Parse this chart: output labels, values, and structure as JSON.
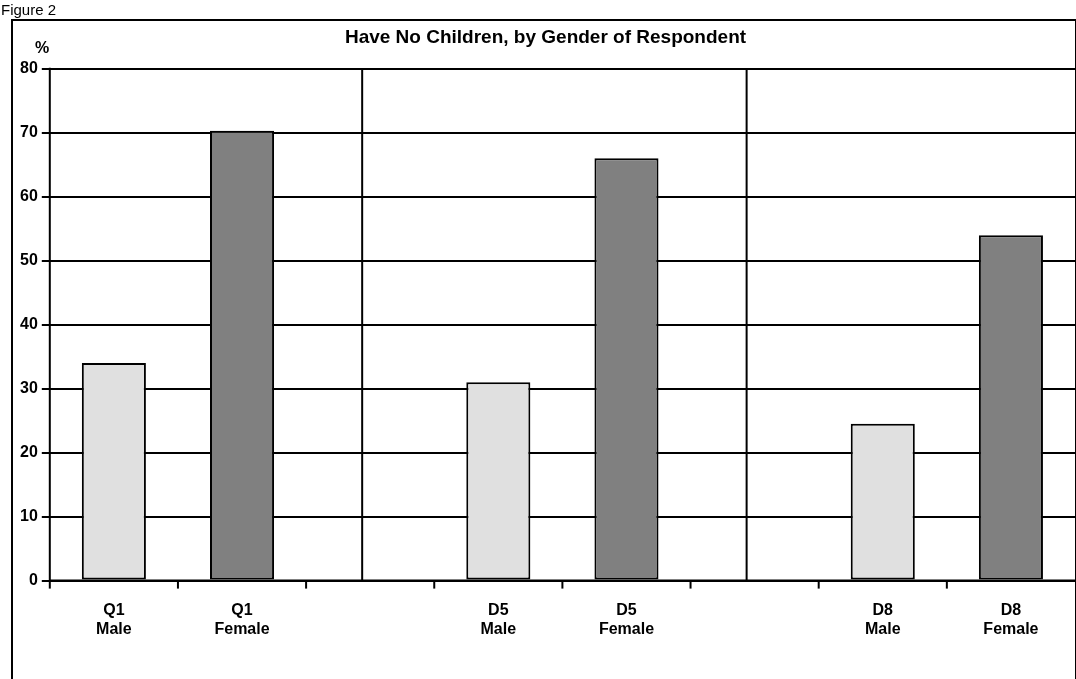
{
  "chart_data": {
    "type": "bar",
    "title": "Have No Children, by Gender of Respondent",
    "ylabel": "%",
    "annotations": [
      "Figure 2"
    ],
    "categories": [
      "Q1\nMale",
      "Q1\nFemale",
      null,
      "D5\nMale",
      "D5\nFemale",
      null,
      "D8\nMale",
      "D8\nFemale"
    ],
    "values": [
      34,
      70.3,
      null,
      31,
      66,
      null,
      24.5,
      54
    ],
    "colors": [
      "#e0e0e0",
      "#808080",
      null,
      "#e0e0e0",
      "#808080",
      null,
      "#e0e0e0",
      "#808080"
    ],
    "ylim": [
      0,
      80
    ],
    "yticks": [
      0,
      10,
      20,
      30,
      40,
      50,
      60,
      70,
      80
    ],
    "grid": "y",
    "legend": false
  }
}
